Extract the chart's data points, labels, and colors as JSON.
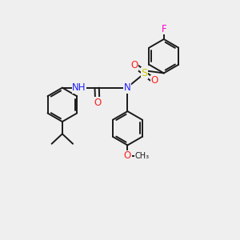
{
  "background_color": "#efefef",
  "figsize": [
    3.0,
    3.0
  ],
  "dpi": 100,
  "bond_color": "#1a1a1a",
  "bond_lw": 1.4,
  "atom_colors": {
    "N": "#2020ff",
    "H": "#2020ff",
    "O": "#ff2020",
    "S": "#cccc00",
    "F": "#ff00cc",
    "C": "#1a1a1a"
  },
  "font_size": 8.5
}
